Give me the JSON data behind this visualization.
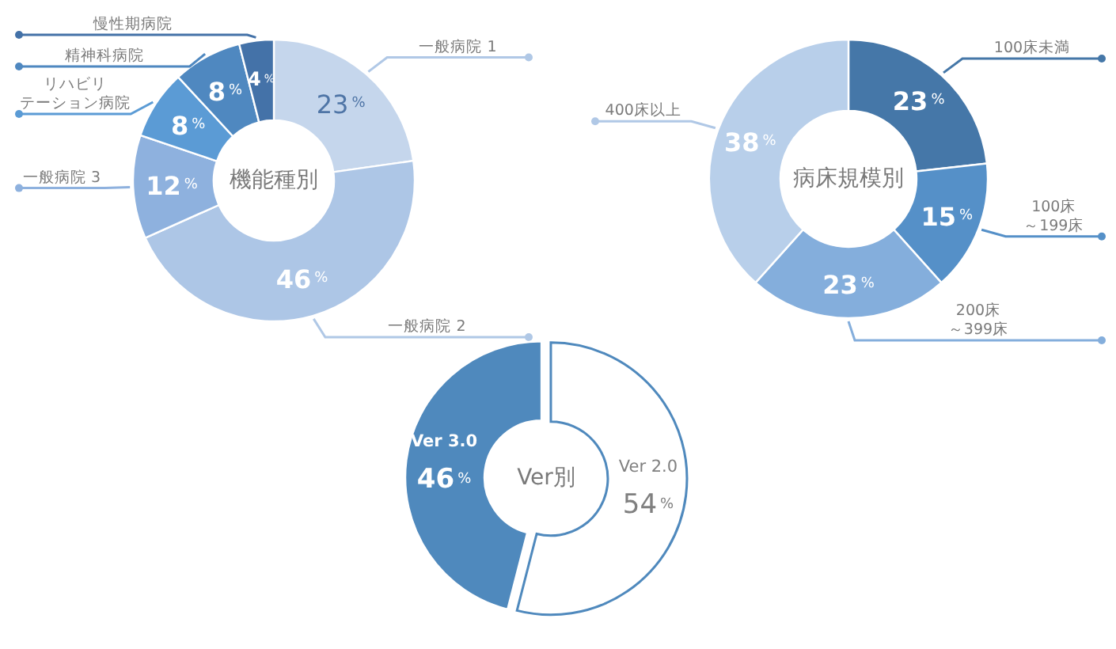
{
  "chart_data": [
    {
      "type": "donut",
      "title": "機能種別",
      "categories": [
        "一般病院 1",
        "一般病院 2",
        "一般病院 3",
        "リハビリテーション病院",
        "精神科病院",
        "慢性期病院"
      ],
      "values": [
        23,
        46,
        12,
        8,
        8,
        4
      ],
      "colors": [
        "#c5d6ec",
        "#adc6e6",
        "#8eb1de",
        "#5b9bd5",
        "#4f88c0",
        "#4472a8"
      ],
      "value_labels": [
        "23%",
        "46%",
        "12%",
        "8%",
        "8%",
        "4%"
      ]
    },
    {
      "type": "donut",
      "title": "病床規模別",
      "categories": [
        "100床未満",
        "100床～199床",
        "200床～399床",
        "400床以上"
      ],
      "values": [
        23,
        15,
        23,
        38
      ],
      "colors": [
        "#4577a8",
        "#5590c8",
        "#84aedc",
        "#b8cfea"
      ],
      "value_labels": [
        "23%",
        "15%",
        "23%",
        "38%"
      ]
    },
    {
      "type": "donut",
      "title": "Ver別",
      "categories": [
        "Ver 2.0",
        "Ver 3.0"
      ],
      "values": [
        54,
        46
      ],
      "colors": [
        "#ffffff",
        "#4f89bd"
      ],
      "value_labels": [
        "54%",
        "46%"
      ]
    }
  ]
}
